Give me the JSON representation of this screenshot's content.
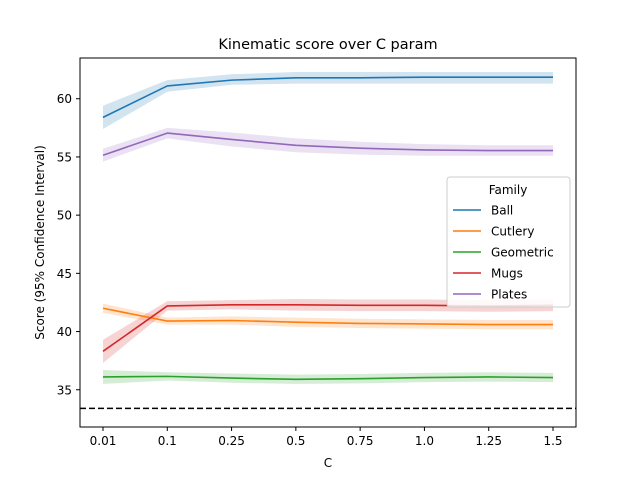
{
  "chart_data": {
    "type": "line",
    "title": "Kinematic score over C param",
    "xlabel": "C",
    "ylabel": "Score (95% Confidence Interval)",
    "x_tick_labels": [
      "0.01",
      "0.1",
      "0.25",
      "0.5",
      "0.75",
      "1.0",
      "1.25",
      "1.5"
    ],
    "y_ticks": [
      35,
      40,
      45,
      50,
      55,
      60
    ],
    "ylim": [
      31.8,
      63.5
    ],
    "grid": false,
    "legend": {
      "title": "Family",
      "placement": "center-right"
    },
    "reference_line": {
      "y": 33.4,
      "style": "dashed",
      "color": "#000000"
    },
    "series": [
      {
        "name": "Ball",
        "color": "#1f77b4",
        "values": [
          58.4,
          61.1,
          61.6,
          61.8,
          61.8,
          61.85,
          61.85,
          61.85
        ],
        "ci_low": [
          57.4,
          60.6,
          61.2,
          61.3,
          61.3,
          61.3,
          61.3,
          61.3
        ],
        "ci_high": [
          59.4,
          61.6,
          62.1,
          62.3,
          62.3,
          62.3,
          62.3,
          62.3
        ]
      },
      {
        "name": "Cutlery",
        "color": "#ff7f0e",
        "values": [
          42.0,
          40.9,
          40.95,
          40.8,
          40.7,
          40.65,
          40.6,
          40.6
        ],
        "ci_low": [
          41.6,
          40.6,
          40.6,
          40.4,
          40.3,
          40.25,
          40.2,
          40.2
        ],
        "ci_high": [
          42.4,
          41.2,
          41.3,
          41.2,
          41.1,
          41.05,
          41.0,
          41.0
        ]
      },
      {
        "name": "Geometric",
        "color": "#2ca02c",
        "values": [
          36.1,
          36.15,
          36.0,
          35.9,
          35.95,
          36.05,
          36.1,
          36.05
        ],
        "ci_low": [
          35.5,
          35.8,
          35.6,
          35.5,
          35.55,
          35.65,
          35.7,
          35.65
        ],
        "ci_high": [
          36.7,
          36.5,
          36.4,
          36.3,
          36.35,
          36.45,
          36.5,
          36.45
        ]
      },
      {
        "name": "Mugs",
        "color": "#d62728",
        "values": [
          38.3,
          42.2,
          42.3,
          42.3,
          42.25,
          42.25,
          42.2,
          42.25
        ],
        "ci_low": [
          37.3,
          41.8,
          41.9,
          41.8,
          41.75,
          41.75,
          41.7,
          41.75
        ],
        "ci_high": [
          39.3,
          42.6,
          42.7,
          42.8,
          42.75,
          42.75,
          42.7,
          42.75
        ]
      },
      {
        "name": "Plates",
        "color": "#9467bd",
        "values": [
          55.15,
          57.05,
          56.5,
          56.0,
          55.75,
          55.6,
          55.55,
          55.55
        ],
        "ci_low": [
          54.6,
          56.6,
          55.9,
          55.4,
          55.2,
          55.1,
          55.1,
          55.1
        ],
        "ci_high": [
          55.7,
          57.5,
          57.1,
          56.6,
          56.3,
          56.1,
          56.0,
          56.0
        ]
      }
    ]
  }
}
